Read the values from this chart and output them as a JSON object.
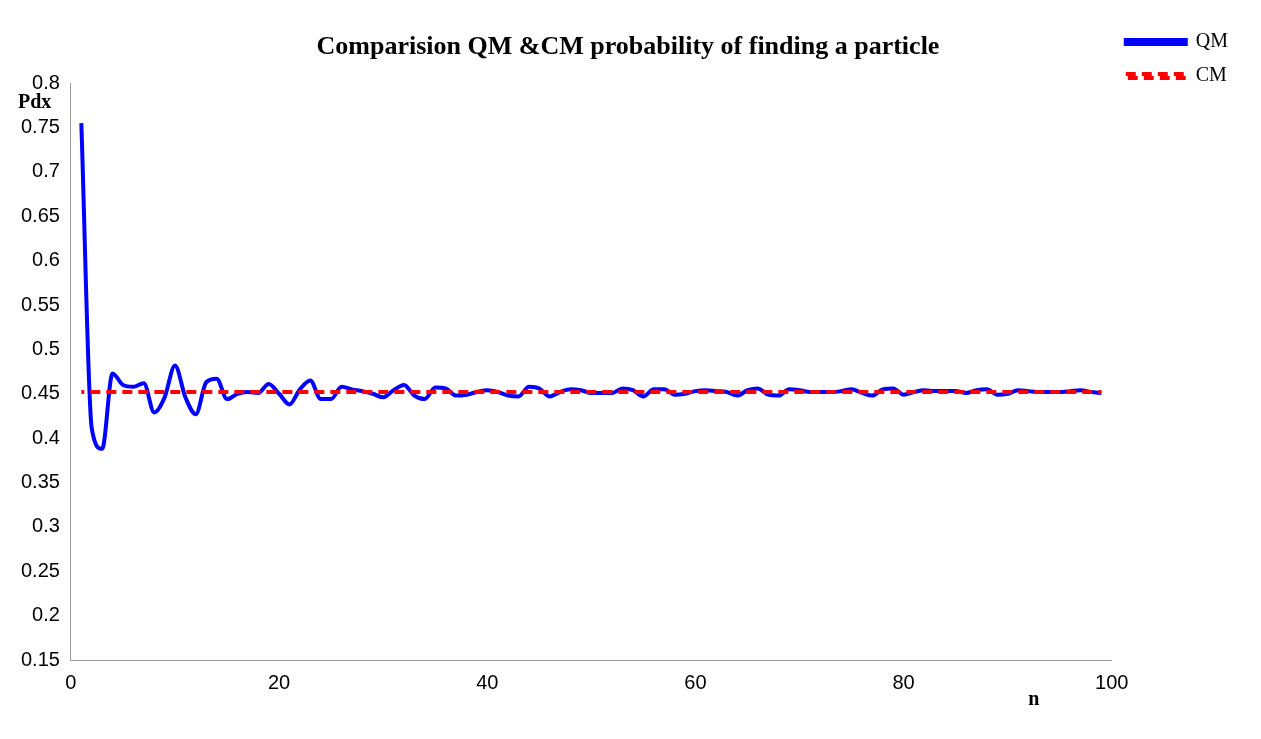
{
  "chart_data": {
    "type": "line",
    "title": "Comparision QM &CM probability of finding a particle",
    "xlabel": "n",
    "ylabel": "Pdx",
    "x": [
      1,
      2,
      3,
      4,
      5,
      6,
      7,
      8,
      9,
      10,
      11,
      12,
      13,
      14,
      15,
      16,
      17,
      18,
      19,
      20,
      21,
      22,
      23,
      24,
      25,
      26,
      27,
      28,
      29,
      30,
      31,
      32,
      33,
      34,
      35,
      36,
      37,
      38,
      39,
      40,
      41,
      42,
      43,
      44,
      45,
      46,
      47,
      48,
      49,
      50,
      51,
      52,
      53,
      54,
      55,
      56,
      57,
      58,
      59,
      60,
      61,
      62,
      63,
      64,
      65,
      66,
      67,
      68,
      69,
      70,
      71,
      72,
      73,
      74,
      75,
      76,
      77,
      78,
      79,
      80,
      81,
      82,
      83,
      84,
      85,
      86,
      87,
      88,
      89,
      90,
      91,
      92,
      93,
      94,
      95,
      96,
      97,
      98,
      99
    ],
    "series": [
      {
        "name": "QM",
        "color": "#0000ff",
        "line_style": "solid",
        "values": [
          0.755,
          0.411,
          0.388,
          0.473,
          0.46,
          0.458,
          0.462,
          0.429,
          0.446,
          0.482,
          0.446,
          0.427,
          0.463,
          0.467,
          0.444,
          0.45,
          0.452,
          0.451,
          0.461,
          0.45,
          0.438,
          0.455,
          0.465,
          0.444,
          0.444,
          0.458,
          0.455,
          0.453,
          0.45,
          0.446,
          0.454,
          0.46,
          0.448,
          0.444,
          0.457,
          0.456,
          0.448,
          0.449,
          0.452,
          0.454,
          0.452,
          0.448,
          0.447,
          0.458,
          0.456,
          0.447,
          0.452,
          0.455,
          0.454,
          0.451,
          0.451,
          0.451,
          0.456,
          0.454,
          0.447,
          0.455,
          0.455,
          0.449,
          0.45,
          0.453,
          0.454,
          0.453,
          0.452,
          0.448,
          0.454,
          0.456,
          0.449,
          0.448,
          0.455,
          0.454,
          0.452,
          0.452,
          0.452,
          0.453,
          0.455,
          0.451,
          0.448,
          0.455,
          0.456,
          0.449,
          0.452,
          0.454,
          0.453,
          0.453,
          0.453,
          0.451,
          0.454,
          0.455,
          0.449,
          0.45,
          0.454,
          0.453,
          0.452,
          0.452,
          0.452,
          0.453,
          0.454,
          0.452,
          0.451
        ]
      },
      {
        "name": "CM",
        "color": "#ff0000",
        "line_style": "dashed",
        "values": [
          0.452,
          0.452,
          0.452,
          0.452,
          0.452,
          0.452,
          0.452,
          0.452,
          0.452,
          0.452,
          0.452,
          0.452,
          0.452,
          0.452,
          0.452,
          0.452,
          0.452,
          0.452,
          0.452,
          0.452,
          0.452,
          0.452,
          0.452,
          0.452,
          0.452,
          0.452,
          0.452,
          0.452,
          0.452,
          0.452,
          0.452,
          0.452,
          0.452,
          0.452,
          0.452,
          0.452,
          0.452,
          0.452,
          0.452,
          0.452,
          0.452,
          0.452,
          0.452,
          0.452,
          0.452,
          0.452,
          0.452,
          0.452,
          0.452,
          0.452,
          0.452,
          0.452,
          0.452,
          0.452,
          0.452,
          0.452,
          0.452,
          0.452,
          0.452,
          0.452,
          0.452,
          0.452,
          0.452,
          0.452,
          0.452,
          0.452,
          0.452,
          0.452,
          0.452,
          0.452,
          0.452,
          0.452,
          0.452,
          0.452,
          0.452,
          0.452,
          0.452,
          0.452,
          0.452,
          0.452,
          0.452,
          0.452,
          0.452,
          0.452,
          0.452,
          0.452,
          0.452,
          0.452,
          0.452,
          0.452,
          0.452,
          0.452,
          0.452,
          0.452,
          0.452,
          0.452,
          0.452,
          0.452,
          0.452
        ]
      }
    ],
    "xlim": [
      0,
      100
    ],
    "xticks": [
      0,
      20,
      40,
      60,
      80,
      100
    ],
    "ylim": [
      0.15,
      0.8
    ],
    "yticks": [
      0.15,
      0.2,
      0.25,
      0.3,
      0.35,
      0.4,
      0.45,
      0.5,
      0.55,
      0.6,
      0.65,
      0.7,
      0.75,
      0.8
    ],
    "grid": false,
    "legend": "top right",
    "marker": "none"
  }
}
